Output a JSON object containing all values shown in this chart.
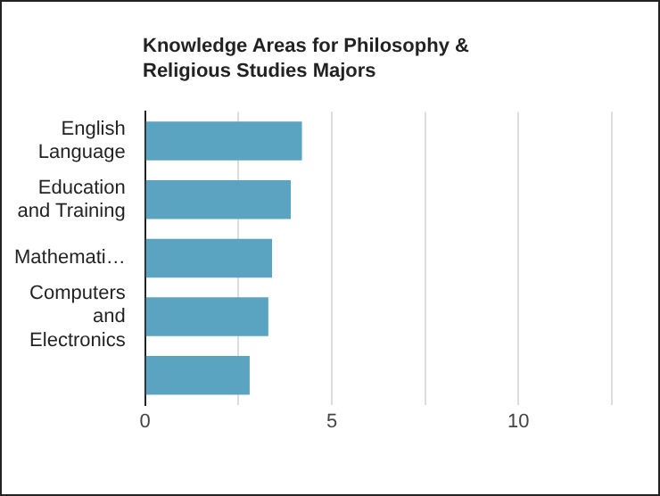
{
  "chart_data": {
    "type": "bar",
    "orientation": "horizontal",
    "title": "Knowledge Areas for Philosophy & Religious Studies Majors",
    "categories": [
      "English Language",
      "Education and Training",
      "Mathemati…",
      "Computers and Electronics",
      null
    ],
    "values": [
      4.2,
      3.9,
      3.4,
      3.3,
      2.8
    ],
    "color": "#5aa3c1",
    "xlim": [
      0,
      12.5
    ],
    "xticks": [
      0,
      {
        "value": 2.5,
        "label": null
      },
      5,
      {
        "value": 7.5,
        "label": null
      },
      10,
      {
        "value": 12.5,
        "label": null
      }
    ],
    "grid": "x"
  }
}
